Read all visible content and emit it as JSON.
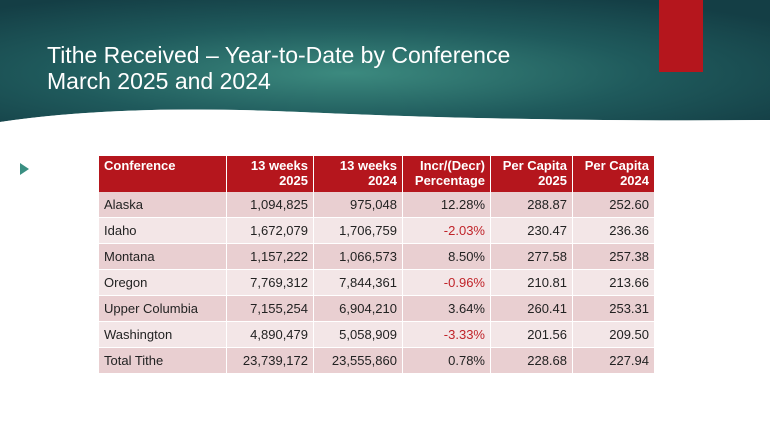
{
  "slide": {
    "title_line1": "Tithe Received – Year-to-Date by Conference",
    "title_line2": "March 2025 and 2024",
    "colors": {
      "header_teal": "#1f5a5c",
      "accent_red": "#b5161d",
      "negative_red": "#c0242a"
    }
  },
  "table": {
    "headers": [
      [
        "Conference",
        ""
      ],
      [
        "13 weeks",
        "2025"
      ],
      [
        "13 weeks",
        "2024"
      ],
      [
        "Incr/(Decr)",
        "Percentage"
      ],
      [
        "Per Capita",
        "2025"
      ],
      [
        "Per Capita",
        "2024"
      ]
    ],
    "rows": [
      [
        "Alaska",
        "1,094,825",
        "975,048",
        "12.28%",
        "288.87",
        "252.60"
      ],
      [
        "Idaho",
        "1,672,079",
        "1,706,759",
        "-2.03%",
        "230.47",
        "236.36"
      ],
      [
        "Montana",
        "1,157,222",
        "1,066,573",
        "8.50%",
        "277.58",
        "257.38"
      ],
      [
        "Oregon",
        "7,769,312",
        "7,844,361",
        "-0.96%",
        "210.81",
        "213.66"
      ],
      [
        "Upper Columbia",
        "7,155,254",
        "6,904,210",
        "3.64%",
        "260.41",
        "253.31"
      ],
      [
        "Washington",
        "4,890,479",
        "5,058,909",
        "-3.33%",
        "201.56",
        "209.50"
      ]
    ],
    "total": [
      "Total Tithe",
      "23,739,172",
      "23,555,860",
      "0.78%",
      "228.68",
      "227.94"
    ]
  }
}
